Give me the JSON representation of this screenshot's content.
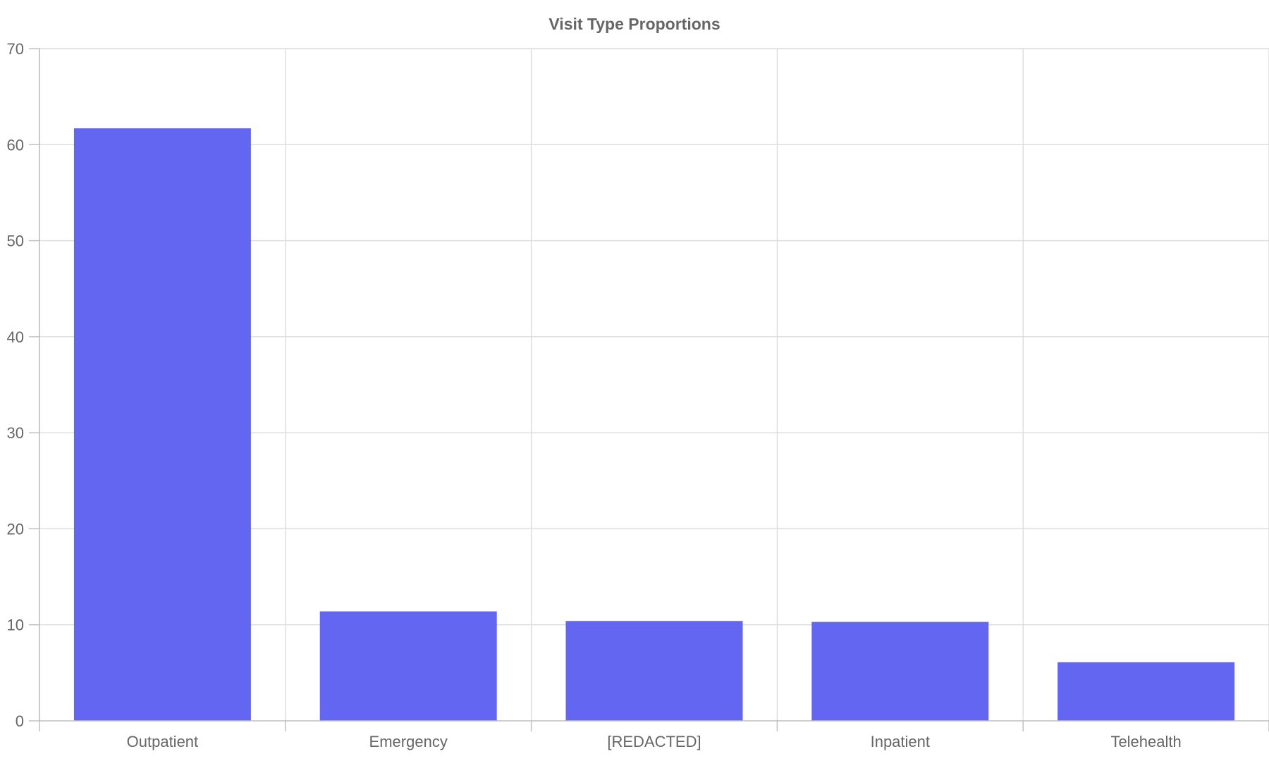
{
  "chart_data": {
    "type": "bar",
    "title": "Visit Type Proportions",
    "categories": [
      "Outpatient",
      "Emergency",
      "[REDACTED]",
      "Inpatient",
      "Telehealth"
    ],
    "values": [
      61.7,
      11.4,
      10.4,
      10.3,
      6.1
    ],
    "ylim": [
      0,
      70
    ],
    "yticks": [
      0,
      10,
      20,
      30,
      40,
      50,
      60,
      70
    ],
    "xlabel": "",
    "ylabel": "",
    "grid": true,
    "legend": "none",
    "bar_color": "#6366f1"
  }
}
